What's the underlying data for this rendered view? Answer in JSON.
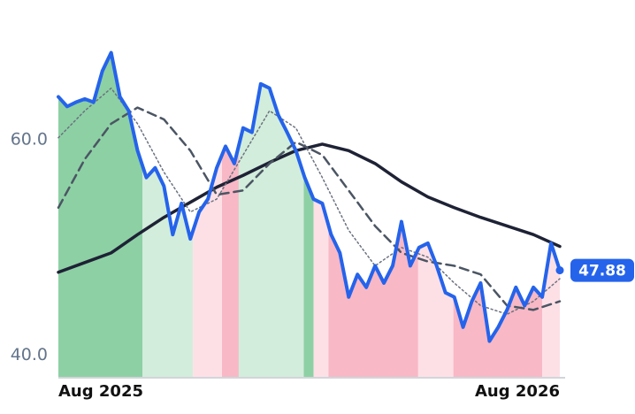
{
  "chart_data": {
    "type": "line",
    "xlim": [
      0,
      57
    ],
    "ylim": [
      37.9,
      69
    ],
    "xticks": [
      {
        "value": 0,
        "label": "Aug 2025"
      },
      {
        "value": 57,
        "label": "Aug 2026"
      }
    ],
    "yticks": [
      {
        "value": 40,
        "label": "40.0"
      },
      {
        "value": 60,
        "label": "60.0"
      }
    ],
    "regions": [
      {
        "start": 0,
        "end": 9.55,
        "color": "#8dd0a4"
      },
      {
        "start": 9.55,
        "end": 15.3,
        "color": "#d2eddb"
      },
      {
        "start": 15.3,
        "end": 18.6,
        "color": "#fde0e6"
      },
      {
        "start": 18.6,
        "end": 20.5,
        "color": "#f8b8c5"
      },
      {
        "start": 20.5,
        "end": 27.9,
        "color": "#d2eddb"
      },
      {
        "start": 27.9,
        "end": 29,
        "color": "#8dd0a4"
      },
      {
        "start": 29,
        "end": 30.7,
        "color": "#fde0e6"
      },
      {
        "start": 30.7,
        "end": 40.9,
        "color": "#f8b8c5"
      },
      {
        "start": 40.9,
        "end": 44.9,
        "color": "#fde0e6"
      },
      {
        "start": 44.9,
        "end": 55,
        "color": "#f8b8c5"
      },
      {
        "start": 55,
        "end": 57,
        "color": "#fde0e6"
      }
    ],
    "series": [
      {
        "color": "#2563eb",
        "style": "solid",
        "width": 4,
        "x": [
          0,
          1,
          2,
          3,
          4,
          5,
          6,
          7,
          8,
          9,
          10,
          11,
          12,
          13,
          14,
          15,
          16,
          17,
          18,
          19,
          20,
          21,
          22,
          23,
          24,
          25,
          26,
          27,
          28,
          29,
          30,
          31,
          32,
          33,
          34,
          35,
          36,
          37,
          38,
          39,
          40,
          41,
          42,
          43,
          44,
          45,
          46,
          47,
          48,
          49,
          50,
          51,
          52,
          53,
          54,
          55,
          56,
          57
        ],
        "values": [
          64.0,
          63.1,
          63.5,
          63.8,
          63.5,
          66.4,
          68.1,
          64.0,
          62.7,
          59.0,
          56.5,
          57.4,
          55.7,
          51.2,
          54.1,
          50.8,
          53.3,
          54.5,
          57.4,
          59.4,
          57.8,
          61.1,
          60.7,
          65.2,
          64.8,
          62.3,
          60.7,
          59.0,
          56.5,
          54.5,
          54.1,
          51.2,
          49.5,
          45.4,
          47.5,
          46.3,
          48.3,
          46.7,
          48.3,
          52.4,
          48.3,
          50.0,
          50.4,
          48.3,
          45.8,
          45.4,
          42.6,
          45.0,
          46.7,
          41.3,
          42.6,
          44.2,
          46.3,
          44.6,
          46.3,
          45.4,
          50.4,
          47.88
        ]
      },
      {
        "color": "#1e2235",
        "style": "solid",
        "width": 3.5,
        "x": [
          0,
          3,
          6,
          9,
          12,
          15,
          18,
          21,
          24,
          27,
          30,
          33,
          36,
          39,
          42,
          45,
          48,
          51,
          54,
          57
        ],
        "values": [
          47.7,
          48.6,
          49.5,
          51.2,
          52.8,
          54.2,
          55.6,
          56.7,
          57.9,
          59.0,
          59.6,
          59.0,
          57.8,
          56.1,
          54.7,
          53.7,
          52.8,
          52.0,
          51.2,
          50.1
        ]
      },
      {
        "color": "#4b5563",
        "style": "dashed",
        "width": 2.5,
        "x": [
          0,
          3,
          6,
          9,
          12,
          15,
          18,
          21,
          24,
          27,
          30,
          33,
          36,
          39,
          42,
          45,
          48,
          51,
          54,
          57
        ],
        "values": [
          53.7,
          58.2,
          61.5,
          63.0,
          61.9,
          59.0,
          54.9,
          55.3,
          57.8,
          59.8,
          58.6,
          55.3,
          52.0,
          49.5,
          48.7,
          48.3,
          47.5,
          44.6,
          44.2,
          45.0
        ]
      },
      {
        "color": "#6b7280",
        "style": "dotted",
        "width": 1.5,
        "x": [
          0,
          3,
          6,
          9,
          12,
          15,
          18,
          21,
          24,
          27,
          30,
          33,
          36,
          39,
          42,
          45,
          48,
          51,
          54,
          57
        ],
        "values": [
          60.2,
          62.7,
          64.8,
          61.5,
          57.0,
          53.3,
          54.5,
          58.6,
          62.7,
          61.1,
          56.5,
          51.6,
          48.3,
          50.0,
          49.1,
          46.7,
          44.6,
          43.8,
          45.0,
          47.1
        ]
      }
    ]
  }
}
